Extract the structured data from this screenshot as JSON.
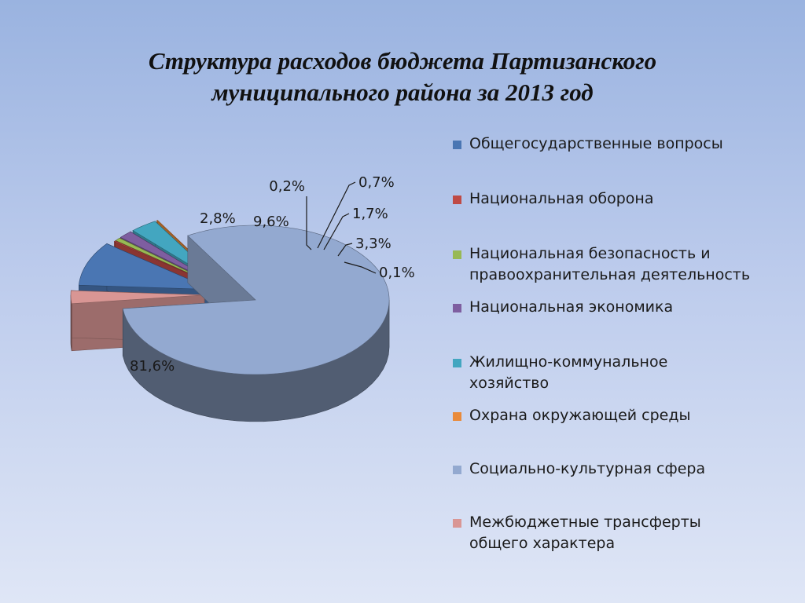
{
  "title": {
    "line1": "Структура расходов бюджета Партизанского",
    "line2": "муниципального района за 2013 год"
  },
  "chart_data": {
    "type": "pie",
    "title": "Структура расходов бюджета Партизанского муниципального района за 2013 год",
    "categories": [
      "Общегосударственные вопросы",
      "Национальная оборона",
      "Национальная безопасность и правоохранительная деятельность",
      "Национальная экономика",
      "Жилищно-коммунальное хозяйство",
      "Охрана окружающей среды",
      "Социально-культурная сфера",
      "Межбюджетные трансферты общего характера"
    ],
    "values": [
      9.6,
      0.2,
      0.7,
      1.7,
      3.3,
      0.1,
      81.6,
      2.8
    ],
    "labels": [
      "9,6%",
      "0,2%",
      "0,7%",
      "1,7%",
      "3,3%",
      "0,1%",
      "81,6%",
      "2,8%"
    ],
    "colors": [
      "#4a76b3",
      "#bf4a45",
      "#98b954",
      "#7e5ea0",
      "#43a6c0",
      "#e98a3a",
      "#93a9d0",
      "#d99694"
    ],
    "legend_position": "right",
    "three_d": true,
    "exploded": true
  },
  "legend": {
    "items": [
      {
        "lines": [
          "Общегосударственные вопросы"
        ]
      },
      {
        "lines": [
          "Национальная оборона"
        ]
      },
      {
        "lines": [
          "Национальная безопасность и",
          "правоохранительная деятельность"
        ]
      },
      {
        "lines": [
          "Национальная экономика"
        ]
      },
      {
        "lines": [
          "Жилищно-коммунальное",
          "хозяйство"
        ]
      },
      {
        "lines": [
          "Охрана окружающей среды"
        ]
      },
      {
        "lines": [
          "Социально-культурная сфера"
        ]
      },
      {
        "lines": [
          "Межбюджетные трансферты",
          "общего характера"
        ]
      }
    ]
  }
}
